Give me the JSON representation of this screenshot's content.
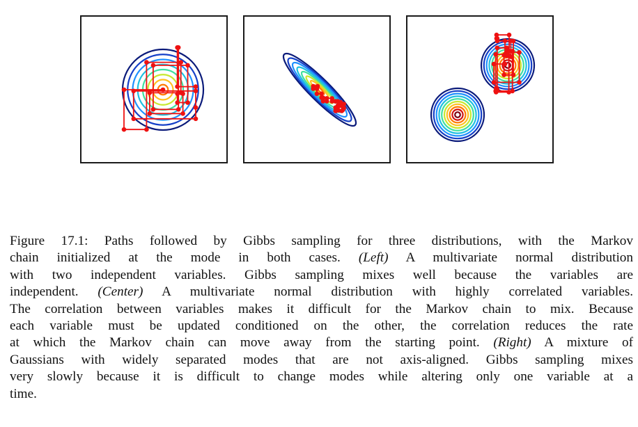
{
  "figure": {
    "panels": [
      {
        "id": "left"
      },
      {
        "id": "center"
      },
      {
        "id": "right"
      }
    ],
    "colors": {
      "contours": [
        "#0a1a7a",
        "#1540c8",
        "#1e90ff",
        "#20c0e0",
        "#40e0a0",
        "#c8e830",
        "#ffc020",
        "#ff7a00",
        "#d01010",
        "#7a0010"
      ],
      "path": "#ee1111",
      "frame": "#1a1a1a"
    }
  },
  "caption": {
    "line1": "Figure 17.1: Paths followed by Gibbs sampling for three distributions, with the Markov",
    "line2a": "chain initialized at the mode in both cases.",
    "line2_tag": "(Left)",
    "line2b": "A multivariate normal distribution",
    "line3": "with two independent variables.  Gibbs sampling mixes well because the variables are",
    "line4a": "independent.",
    "line4_tag": "(Center)",
    "line4b": "A multivariate normal distribution with highly correlated variables.",
    "line5": "The correlation between variables makes it difficult for the Markov chain to mix.  Because",
    "line6": "each variable must be updated conditioned on the other, the correlation reduces the rate",
    "line7a": "at which the Markov chain can move away from the starting point.",
    "line7_tag": "(Right)",
    "line7b": "A mixture of",
    "line8": "Gaussians with widely separated modes that are not axis-aligned.  Gibbs sampling mixes",
    "line9": "very slowly because it is difficult to change modes while altering only one variable at a",
    "line10": "time."
  }
}
